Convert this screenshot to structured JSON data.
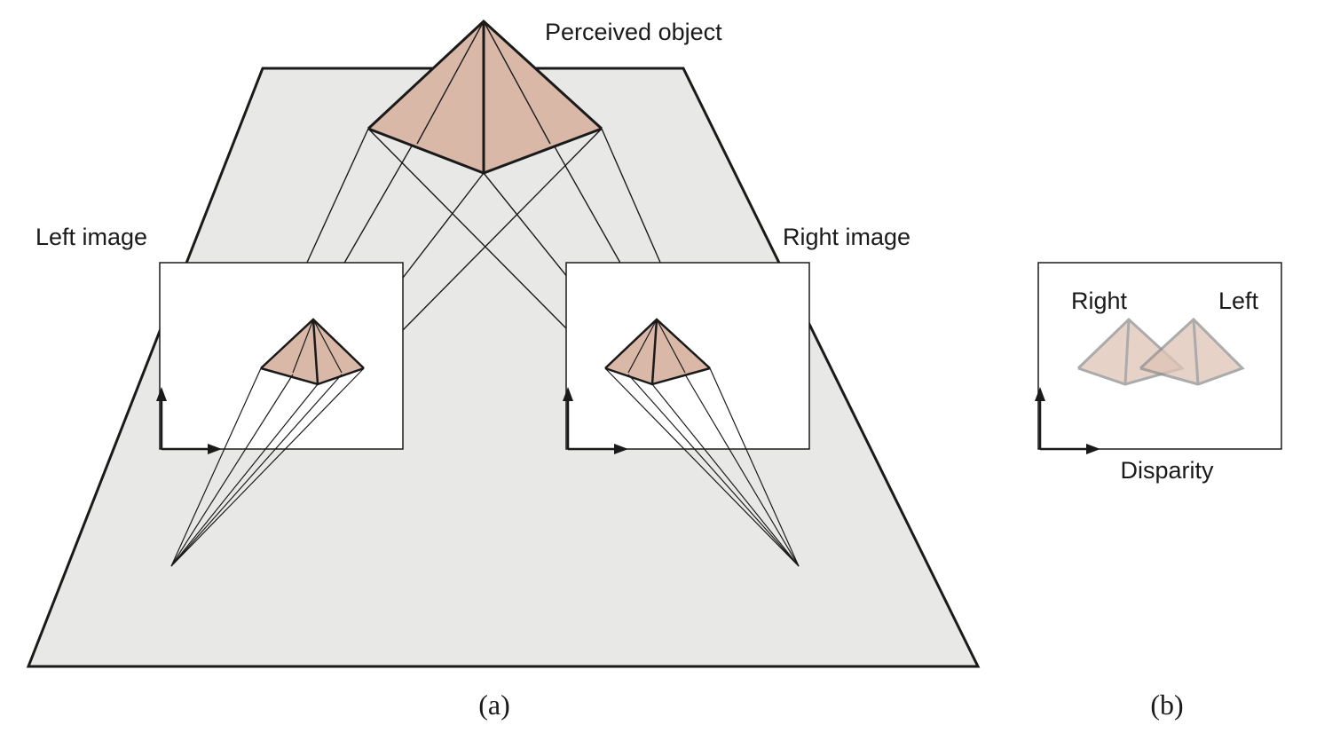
{
  "labels": {
    "perceived_object": "Perceived object",
    "left_image": "Left image",
    "right_image": "Right image",
    "panel_b_right": "Right",
    "panel_b_left": "Left",
    "disparity": "Disparity"
  },
  "captions": {
    "a": "(a)",
    "b": "(b)"
  },
  "colors": {
    "pyramid_fill": "#d9b8a8",
    "pyramid_fill_faded": "#e8d2c8",
    "ground_plane": "#e8e8e6",
    "stroke": "#1a1a1a",
    "faded_stroke": "#9a9a9a"
  }
}
